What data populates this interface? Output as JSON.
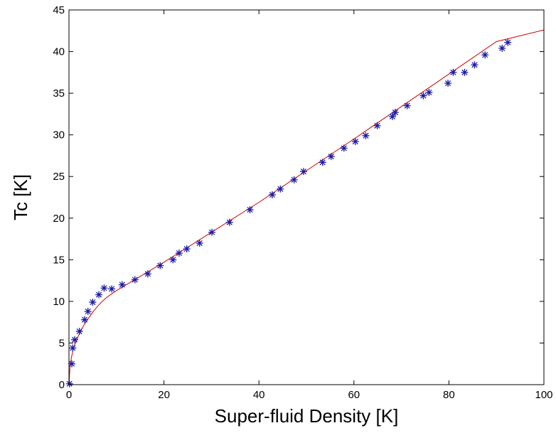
{
  "chart_data": {
    "type": "scatter",
    "title": "",
    "xlabel": "Super-fluid Density [K]",
    "ylabel": "Tc [K]",
    "xlim": [
      0,
      100
    ],
    "ylim": [
      0,
      45
    ],
    "xticks": [
      0,
      20,
      40,
      60,
      80,
      100
    ],
    "yticks": [
      0,
      5,
      10,
      15,
      20,
      25,
      30,
      35,
      40,
      45
    ],
    "grid": false,
    "legend": "none",
    "series": [
      {
        "kind": "markers",
        "marker": "asterisk",
        "color": "#1a1aa6",
        "x": [
          0.1,
          0.6,
          0.8,
          1.2,
          2.2,
          3.3,
          4.0,
          5.0,
          6.3,
          7.4,
          9.0,
          11.2,
          13.9,
          16.6,
          19.2,
          21.9,
          23.2,
          24.8,
          27.5,
          30.1,
          33.8,
          38.1,
          42.8,
          44.5,
          47.4,
          49.4,
          53.4,
          55.2,
          57.9,
          60.3,
          62.5,
          64.9,
          68.1,
          68.7,
          71.2,
          74.6,
          75.8,
          79.8,
          80.9,
          83.3,
          85.4,
          87.6,
          91.2,
          92.4
        ],
        "y": [
          0.1,
          2.5,
          4.4,
          5.4,
          6.4,
          7.8,
          8.8,
          9.9,
          10.8,
          11.6,
          11.5,
          12.0,
          12.6,
          13.3,
          14.3,
          15.0,
          15.8,
          16.3,
          17.0,
          18.3,
          19.5,
          21.0,
          22.8,
          23.5,
          24.6,
          25.6,
          26.7,
          27.4,
          28.4,
          29.2,
          29.9,
          31.1,
          32.2,
          32.7,
          33.5,
          34.7,
          35.1,
          36.2,
          37.5,
          37.5,
          38.4,
          39.6,
          40.4,
          41.1
        ]
      },
      {
        "kind": "line",
        "color": "#cc0000",
        "x": [
          0.0,
          0.2,
          0.5,
          1.0,
          2.0,
          3.0,
          4.0,
          5.0,
          6.0,
          7.0,
          8.0,
          9.0,
          10.0,
          20.0,
          30.0,
          40.0,
          50.0,
          60.0,
          70.0,
          80.0,
          90.0,
          100.0
        ],
        "y": [
          0.0,
          2.0,
          3.2,
          4.5,
          5.9,
          7.0,
          7.9,
          8.7,
          9.4,
          10.0,
          10.5,
          10.9,
          11.3,
          14.7,
          18.3,
          21.9,
          25.7,
          29.5,
          33.4,
          37.3,
          41.2,
          42.6
        ]
      }
    ]
  }
}
